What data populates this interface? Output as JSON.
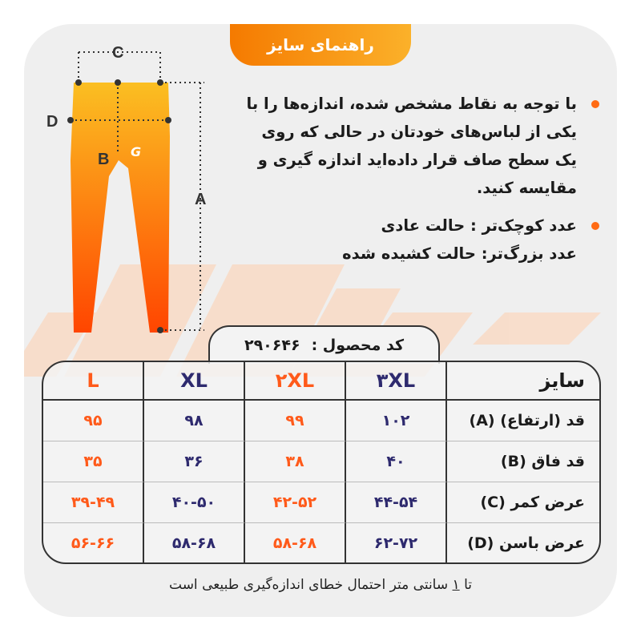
{
  "header": {
    "title": "راهنمای سایز"
  },
  "notes": {
    "instruction": "با توجه به نقاط مشخص شده، اندازه‌ها را با یکی از لباس‌های خودتان در حالی که روی یک سطح صاف قرار داده‌اید اندازه گیری و مقایسه کنید.",
    "smaller": "عدد کوچک‌تر : حالت عادی",
    "larger": "عدد بزرگ‌تر: حالت کشیده شده"
  },
  "diagram": {
    "labels": {
      "a": "A",
      "b": "B",
      "c": "C",
      "d": "D"
    },
    "icon": "pants-diagram"
  },
  "product_code": {
    "label": "کد محصول :",
    "value": "۲۹۰۶۴۶"
  },
  "table": {
    "header": {
      "label": "سایز",
      "sizes": [
        "۳XL",
        "۲XL",
        "XL",
        "L"
      ]
    },
    "rows": [
      {
        "label": "قد (ارتفاع) (A)",
        "values": [
          "۱۰۲",
          "۹۹",
          "۹۸",
          "۹۵"
        ]
      },
      {
        "label": "قد فاق (B)",
        "values": [
          "۴۰",
          "۳۸",
          "۳۶",
          "۳۵"
        ]
      },
      {
        "label": "عرض کمر (C)",
        "values": [
          "۴۴-۵۴",
          "۴۲-۵۲",
          "۴۰-۵۰",
          "۳۹-۴۹"
        ]
      },
      {
        "label": "عرض باسن (D)",
        "values": [
          "۶۲-۷۲",
          "۵۸-۶۸",
          "۵۸-۶۸",
          "۵۶-۶۶"
        ]
      }
    ]
  },
  "footer": {
    "prefix": "تا",
    "number": "۱",
    "suffix": "سانتی متر احتمال خطای اندازه‌گیری طبیعی است"
  },
  "colors": {
    "orange": "#ff5a1a",
    "navy": "#2e2a6e",
    "background": "#efefef"
  }
}
